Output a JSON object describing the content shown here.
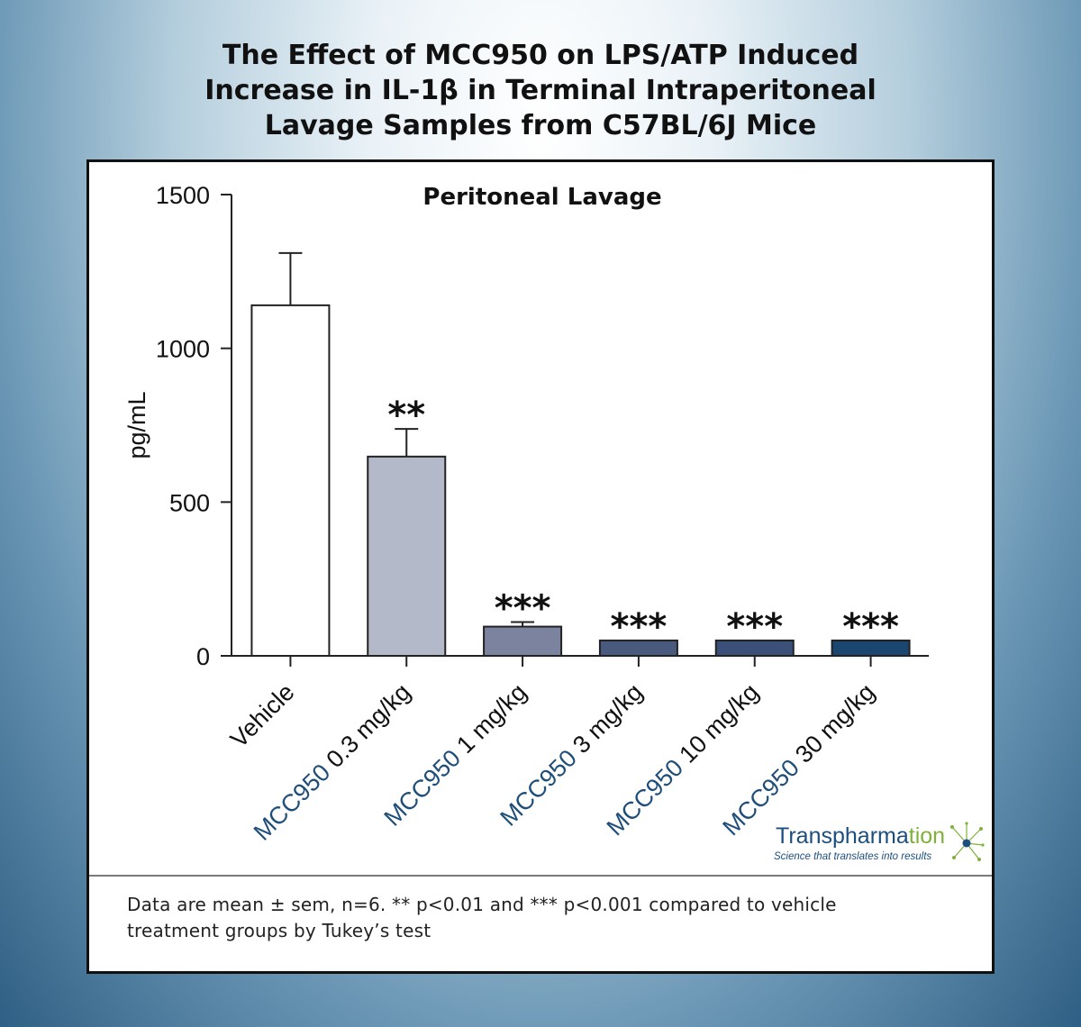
{
  "title_lines": [
    "The Effect of MCC950 on LPS/ATP Induced",
    "Increase in IL-1β in Terminal Intraperitoneal",
    "Lavage Samples from C57BL/6J Mice"
  ],
  "chart_data": {
    "type": "bar",
    "title": "Peritoneal Lavage",
    "ylabel": "pg/mL",
    "ylim": [
      0,
      1500
    ],
    "yticks": [
      "0",
      "500",
      "1000",
      "1500"
    ],
    "grid": false,
    "categories": [
      {
        "prefix": "",
        "rest": "Vehicle"
      },
      {
        "prefix": "MCC950",
        "rest": " 0.3 mg/kg"
      },
      {
        "prefix": "MCC950",
        "rest": " 1 mg/kg"
      },
      {
        "prefix": "MCC950",
        "rest": " 3 mg/kg"
      },
      {
        "prefix": "MCC950",
        "rest": " 10 mg/kg"
      },
      {
        "prefix": "MCC950",
        "rest": " 30 mg/kg"
      }
    ],
    "values": [
      1140,
      648,
      95,
      50,
      50,
      50
    ],
    "errors": [
      170,
      90,
      15,
      0,
      0,
      0
    ],
    "significance": [
      "",
      "**",
      "***",
      "***",
      "***",
      "***"
    ],
    "bar_colors": [
      "#ffffff",
      "#b4b9c9",
      "#7c839f",
      "#4a5a7e",
      "#3a5078",
      "#1b4670"
    ],
    "prefix_color": "#1f4e79"
  },
  "footnote_lines": [
    "Data are mean ± sem, n=6. ** p<0.01 and *** p<0.001 compared to vehicle",
    "treatment groups by Tukey’s test"
  ],
  "logo": {
    "name_part1": "Transpharma",
    "name_part2": "tion",
    "tagline": "Science that translates into results",
    "name_color": "#1c4f80",
    "accent_color": "#7fb23a"
  }
}
